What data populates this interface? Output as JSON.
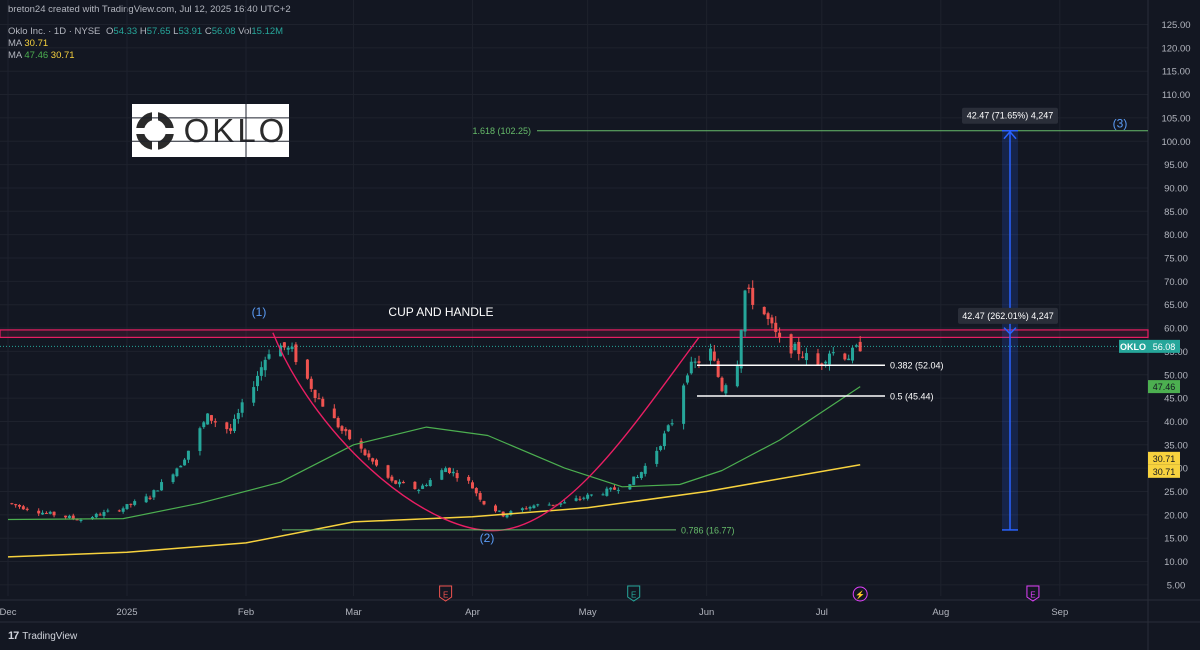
{
  "header": {
    "created_by": "breton24 created with TradingView.com, Jul 12, 2025 16:40 UTC+2",
    "symbol": "Oklo Inc. · 1D · NYSE",
    "o_label": "O",
    "o_value": "54.33",
    "h_label": "H",
    "h_value": "57.65",
    "l_label": "L",
    "l_value": "53.91",
    "c_label": "C",
    "c_value": "56.08",
    "vol_label": "Vol",
    "vol_value": "15.12M",
    "ma1_label": "MA",
    "ma1_value": "30.71",
    "ma2_label": "MA",
    "ma2_value_a": "47.46",
    "ma2_value_b": "30.71"
  },
  "logo": {
    "text": "OKLO"
  },
  "footer": {
    "brand": "TradingView",
    "brand_mark": "17"
  },
  "colors": {
    "background": "#131722",
    "up": "#26a69a",
    "down": "#ef5350",
    "ma_fast": "#4caf50",
    "ma_slow": "#f7d23e",
    "cup": "#e91e63",
    "fib": "#66bb6a",
    "measure": "#2962ff"
  },
  "chart_data": {
    "type": "candlestick",
    "title": "",
    "ylim": [
      0,
      125
    ],
    "y_ticks": [
      "125.00",
      "120.00",
      "115.00",
      "110.00",
      "105.00",
      "100.00",
      "95.00",
      "90.00",
      "85.00",
      "80.00",
      "75.00",
      "70.00",
      "65.00",
      "60.00",
      "55.00",
      "50.00",
      "45.00",
      "40.00",
      "35.00",
      "30.00",
      "25.00",
      "20.00",
      "15.00",
      "10.00",
      "5.00"
    ],
    "x_ticks": [
      {
        "label": "Dec",
        "date": "2024-12-01"
      },
      {
        "label": "2025",
        "date": "2025-01-01"
      },
      {
        "label": "Feb",
        "date": "2025-02-01"
      },
      {
        "label": "Mar",
        "date": "2025-03-01"
      },
      {
        "label": "Apr",
        "date": "2025-04-01"
      },
      {
        "label": "May",
        "date": "2025-05-01"
      },
      {
        "label": "Jun",
        "date": "2025-06-01"
      },
      {
        "label": "Jul",
        "date": "2025-07-01"
      },
      {
        "label": "Aug",
        "date": "2025-08-01"
      },
      {
        "label": "Sep",
        "date": "2025-09-01"
      }
    ],
    "price_path": [
      {
        "date": "2024-12-01",
        "close": 22.5
      },
      {
        "date": "2024-12-10",
        "close": 20.5
      },
      {
        "date": "2024-12-20",
        "close": 19.0
      },
      {
        "date": "2024-12-31",
        "close": 21.5
      },
      {
        "date": "2025-01-07",
        "close": 24.0
      },
      {
        "date": "2025-01-15",
        "close": 31.0
      },
      {
        "date": "2025-01-22",
        "close": 41.0
      },
      {
        "date": "2025-01-28",
        "close": 38.0
      },
      {
        "date": "2025-02-04",
        "close": 50.0
      },
      {
        "date": "2025-02-08",
        "close": 57.0
      },
      {
        "date": "2025-02-13",
        "close": 55.0
      },
      {
        "date": "2025-02-19",
        "close": 46.0
      },
      {
        "date": "2025-02-26",
        "close": 38.0
      },
      {
        "date": "2025-03-04",
        "close": 33.0
      },
      {
        "date": "2025-03-11",
        "close": 27.0
      },
      {
        "date": "2025-03-18",
        "close": 25.5
      },
      {
        "date": "2025-03-25",
        "close": 30.0
      },
      {
        "date": "2025-03-31",
        "close": 27.0
      },
      {
        "date": "2025-04-04",
        "close": 22.5
      },
      {
        "date": "2025-04-09",
        "close": 20.0
      },
      {
        "date": "2025-04-17",
        "close": 22.0
      },
      {
        "date": "2025-04-25",
        "close": 22.5
      },
      {
        "date": "2025-05-01",
        "close": 24.0
      },
      {
        "date": "2025-05-08",
        "close": 25.5
      },
      {
        "date": "2025-05-14",
        "close": 28.0
      },
      {
        "date": "2025-05-19",
        "close": 34.0
      },
      {
        "date": "2025-05-23",
        "close": 40.0
      },
      {
        "date": "2025-05-27",
        "close": 51.0
      },
      {
        "date": "2025-06-02",
        "close": 55.0
      },
      {
        "date": "2025-06-05",
        "close": 47.0
      },
      {
        "date": "2025-06-09",
        "close": 53.0
      },
      {
        "date": "2025-06-11",
        "close": 68.0
      },
      {
        "date": "2025-06-16",
        "close": 63.0
      },
      {
        "date": "2025-06-20",
        "close": 57.0
      },
      {
        "date": "2025-06-25",
        "close": 55.0
      },
      {
        "date": "2025-06-30",
        "close": 52.0
      },
      {
        "date": "2025-07-03",
        "close": 55.0
      },
      {
        "date": "2025-07-08",
        "close": 54.0
      },
      {
        "date": "2025-07-11",
        "close": 56.08
      }
    ],
    "ma_fast": [
      {
        "date": "2024-12-01",
        "value": 19.0
      },
      {
        "date": "2024-12-31",
        "value": 19.2
      },
      {
        "date": "2025-01-20",
        "value": 22.5
      },
      {
        "date": "2025-02-10",
        "value": 27.0
      },
      {
        "date": "2025-03-01",
        "value": 35.0
      },
      {
        "date": "2025-03-20",
        "value": 38.8
      },
      {
        "date": "2025-04-05",
        "value": 37.0
      },
      {
        "date": "2025-04-25",
        "value": 30.0
      },
      {
        "date": "2025-05-10",
        "value": 26.0
      },
      {
        "date": "2025-05-25",
        "value": 26.5
      },
      {
        "date": "2025-06-05",
        "value": 29.5
      },
      {
        "date": "2025-06-20",
        "value": 36.0
      },
      {
        "date": "2025-07-11",
        "value": 47.46
      }
    ],
    "ma_slow": [
      {
        "date": "2024-12-01",
        "value": 11.0
      },
      {
        "date": "2025-01-01",
        "value": 12.0
      },
      {
        "date": "2025-02-01",
        "value": 14.0
      },
      {
        "date": "2025-03-01",
        "value": 18.5
      },
      {
        "date": "2025-04-01",
        "value": 19.6
      },
      {
        "date": "2025-05-01",
        "value": 21.5
      },
      {
        "date": "2025-06-01",
        "value": 25.0
      },
      {
        "date": "2025-07-11",
        "value": 30.71
      }
    ],
    "levels": [
      {
        "label": "1.618 (102.25)",
        "value": 102.25,
        "color": "#66bb6a"
      },
      {
        "label": "0.786 (16.77)",
        "value": 16.77,
        "color": "#66bb6a"
      },
      {
        "label": "0.382 (52.04)",
        "value": 52.04,
        "color": "#ffffff"
      },
      {
        "label": "0.5 (45.44)",
        "value": 45.44,
        "color": "#ffffff"
      }
    ],
    "resistance_zone": [
      58.0,
      59.6
    ],
    "waves": [
      {
        "label": "(1)",
        "date": "2025-02-08",
        "value": 59.0
      },
      {
        "label": "(2)",
        "date": "2025-04-09",
        "value": 16.77
      },
      {
        "label": "(3)",
        "date": "2025-08-25",
        "value": 102.25
      }
    ],
    "annotation": "CUP AND HANDLE",
    "measure": {
      "start": 16.77,
      "end": 102.25,
      "box1": "42.47 (71.65%) 4,247",
      "box2": "42.47 (262.01%) 4,247"
    },
    "price_labels": [
      {
        "text": "OKLO",
        "value": 56.08
      },
      {
        "text": "56.08",
        "value": 56.08
      },
      {
        "text": "47.46",
        "value": 47.46
      },
      {
        "text": "30.71",
        "value": 30.71
      },
      {
        "text": "30.71",
        "value": 30.71
      }
    ],
    "events": [
      {
        "symbol": "E",
        "date": "2025-03-25",
        "color": "#ef5350"
      },
      {
        "symbol": "E",
        "date": "2025-05-13",
        "color": "#26a69a"
      },
      {
        "symbol": "⚡",
        "date": "2025-07-11",
        "color": "#e040fb"
      },
      {
        "symbol": "E",
        "date": "2025-08-25",
        "color": "#e040fb"
      }
    ]
  }
}
